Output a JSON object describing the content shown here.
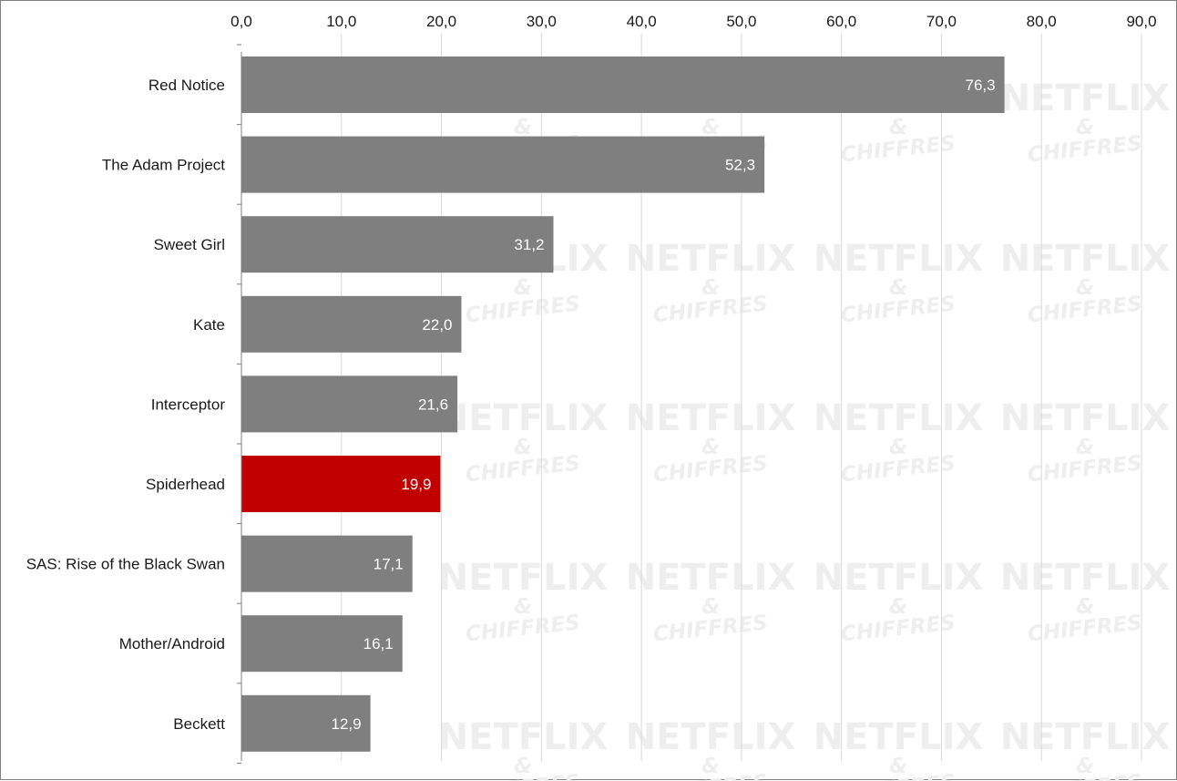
{
  "watermark": {
    "line1": "NETFLIX",
    "line2": "&",
    "line3": "CHIFFRES"
  },
  "colors": {
    "default_bar": "#7f7f7f",
    "highlight_bar": "#c00000",
    "grid": "#d9d9d9",
    "axis": "#7f7f7f"
  },
  "chart_data": {
    "type": "bar",
    "orientation": "horizontal",
    "title": "",
    "xlabel": "",
    "ylabel": "",
    "xlim": [
      0,
      90
    ],
    "x_ticks": [
      "0,0",
      "10,0",
      "20,0",
      "30,0",
      "40,0",
      "50,0",
      "60,0",
      "70,0",
      "80,0",
      "90,0"
    ],
    "x_axis_position": "top",
    "grid": true,
    "legend": "none",
    "categories": [
      "Red Notice",
      "The Adam Project",
      "Sweet Girl",
      "Kate",
      "Interceptor",
      "Spiderhead",
      "SAS: Rise of the Black Swan",
      "Mother/Android",
      "Beckett"
    ],
    "values": [
      76.3,
      52.3,
      31.2,
      22.0,
      21.6,
      19.9,
      17.1,
      16.1,
      12.9
    ],
    "value_labels": [
      "76,3",
      "52,3",
      "31,2",
      "22,0",
      "21,6",
      "19,9",
      "17,1",
      "16,1",
      "12,9"
    ],
    "highlight": "Spiderhead"
  }
}
